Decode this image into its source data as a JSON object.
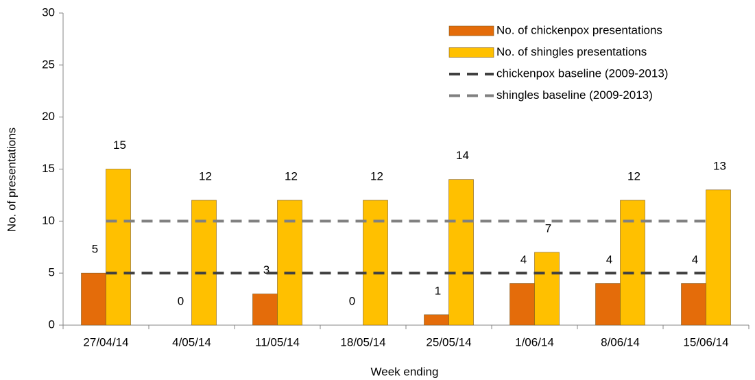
{
  "chart_data": {
    "type": "bar",
    "categories": [
      "27/04/14",
      "4/05/14",
      "11/05/14",
      "18/05/14",
      "25/05/14",
      "1/06/14",
      "8/06/14",
      "15/06/14"
    ],
    "series": [
      {
        "name": "No. of chickenpox presentations",
        "type": "bar",
        "color": "#E46C0A",
        "values": [
          5,
          0,
          3,
          0,
          1,
          4,
          4,
          4
        ]
      },
      {
        "name": "No. of shingles presentations",
        "type": "bar",
        "color": "#FFC000",
        "values": [
          15,
          12,
          12,
          12,
          14,
          7,
          12,
          13
        ]
      },
      {
        "name": "chickenpox baseline (2009-2013)",
        "type": "line",
        "dashed": true,
        "color": "#404040",
        "values": [
          5,
          5,
          5,
          5,
          5,
          5,
          5,
          5
        ]
      },
      {
        "name": "shingles baseline (2009-2013)",
        "type": "line",
        "dashed": true,
        "color": "#808080",
        "values": [
          10,
          10,
          10,
          10,
          10,
          10,
          10,
          10
        ]
      }
    ],
    "x_label": "Week ending",
    "y_label": "No. of presentations",
    "ylim": [
      0,
      30
    ],
    "yticks": [
      0,
      5,
      10,
      15,
      20,
      25,
      30
    ],
    "grid": false,
    "legend": "top-right",
    "data_labels": true
  }
}
